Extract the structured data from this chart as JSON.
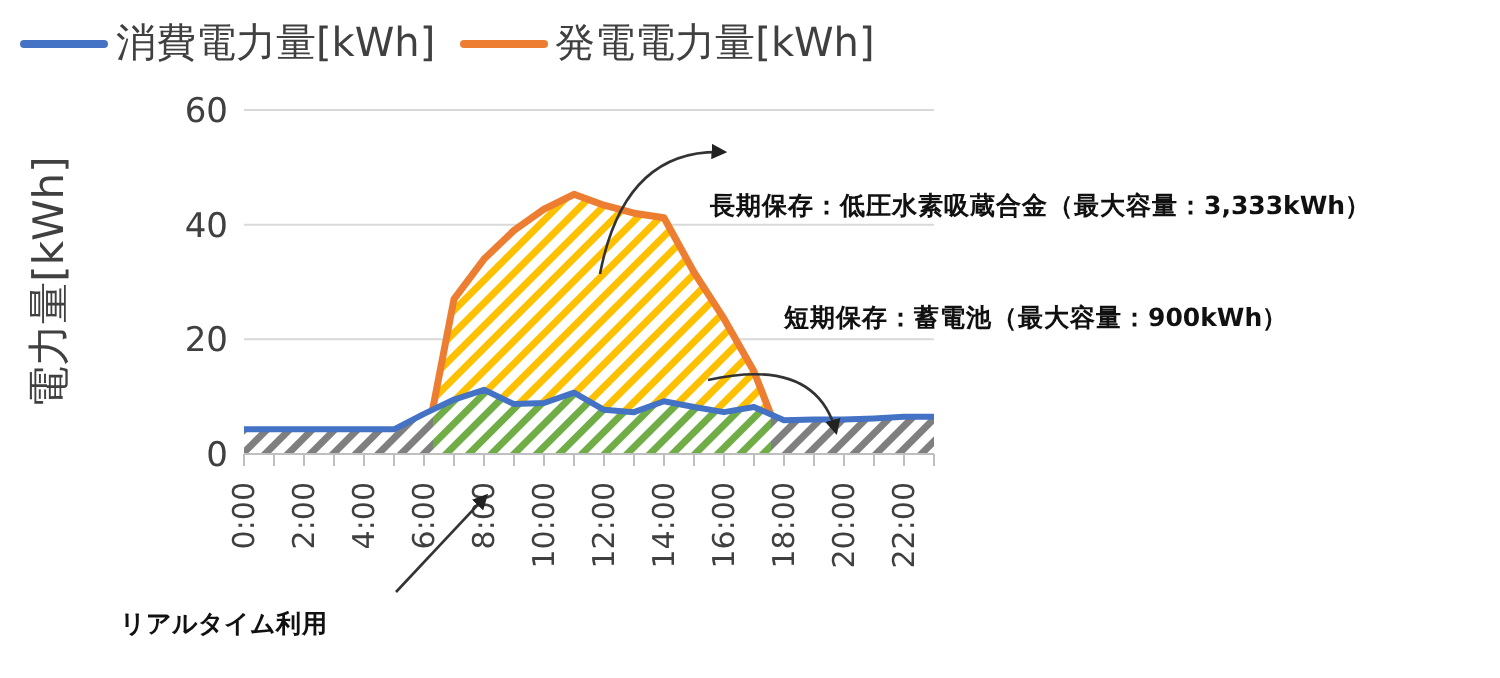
{
  "chart_data": {
    "type": "area",
    "ylabel": "電力量[kWh]",
    "categories": [
      "0:00",
      null,
      "2:00",
      null,
      "4:00",
      null,
      "6:00",
      null,
      "8:00",
      null,
      "10:00",
      null,
      "12:00",
      null,
      "14:00",
      null,
      "16:00",
      null,
      "18:00",
      null,
      "20:00",
      null,
      "22:00",
      null
    ],
    "series": [
      {
        "name": "消費電力量[kWh]",
        "color": "#4472c4",
        "values": [
          4.3,
          4.3,
          4.3,
          4.3,
          4.3,
          4.3,
          7,
          9.5,
          11.2,
          8.7,
          8.9,
          10.7,
          7.7,
          7.3,
          9.2,
          8.2,
          7.3,
          8.2,
          5.9,
          6,
          6,
          6.2,
          6.5,
          6.5
        ]
      },
      {
        "name": "発電電力量[kWh]",
        "color": "#ed7d31",
        "values": [
          0,
          0,
          0,
          0,
          0,
          0,
          0,
          27,
          34,
          39,
          42.7,
          45.3,
          43.4,
          42,
          41.2,
          31.7,
          23.6,
          14.4,
          1,
          0,
          0,
          0,
          0,
          0
        ]
      }
    ],
    "ylim": [
      0,
      60
    ],
    "yticks": [
      0,
      20,
      40,
      60
    ],
    "grid": "y",
    "legend": "top left",
    "annotations": [
      "長期保存：低圧水素吸蔵合金（最大容量：3,333kWh）",
      "短期保存：蓄電池（最大容量：900kWh）",
      "リアルタイム利用"
    ]
  }
}
